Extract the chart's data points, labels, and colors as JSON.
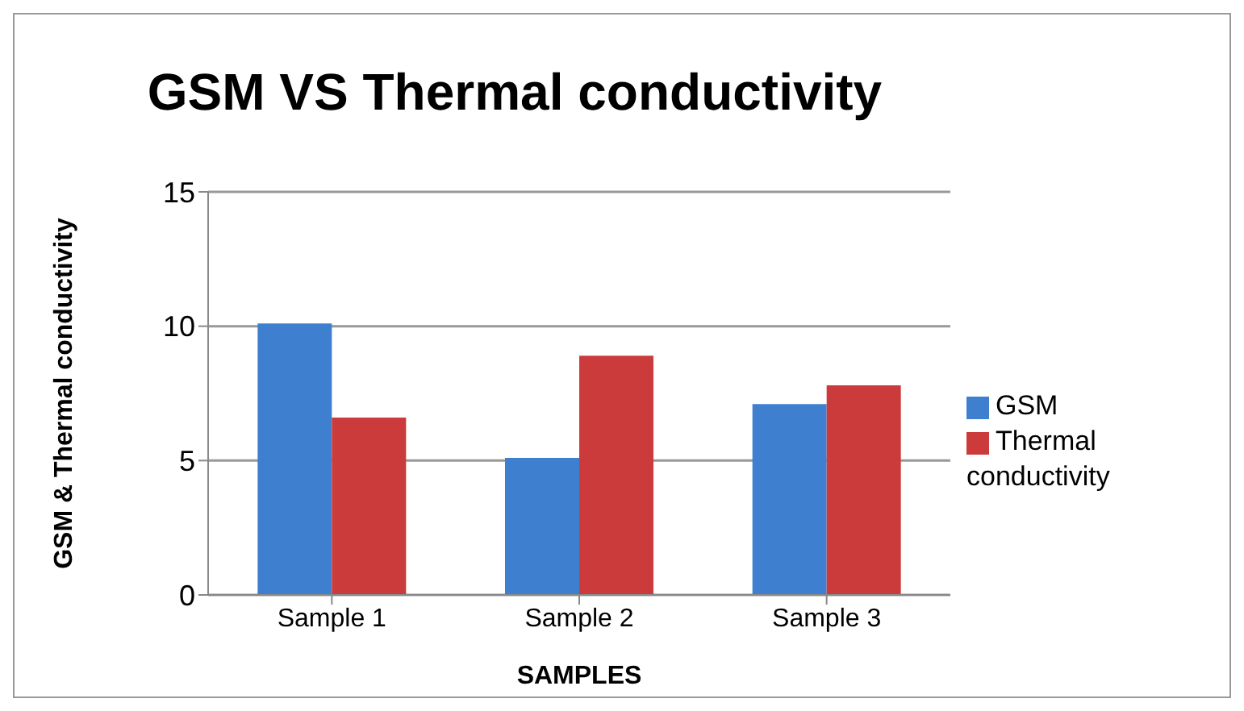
{
  "chart_data": {
    "type": "bar",
    "title": "GSM VS Thermal conductivity",
    "xlabel": "SAMPLES",
    "ylabel": "GSM & Thermal conductivity",
    "categories": [
      "Sample 1",
      "Sample 2",
      "Sample 3"
    ],
    "series": [
      {
        "name": "GSM",
        "color": "#3f7fd0",
        "values": [
          10.1,
          5.1,
          7.1
        ]
      },
      {
        "name": "Thermal conductivity",
        "color": "#cc3b3b",
        "values": [
          6.6,
          8.9,
          7.8
        ]
      }
    ],
    "ylim": [
      0,
      15
    ],
    "yticks": [
      0,
      5,
      10,
      15
    ],
    "grid": "y",
    "legend": "right"
  }
}
